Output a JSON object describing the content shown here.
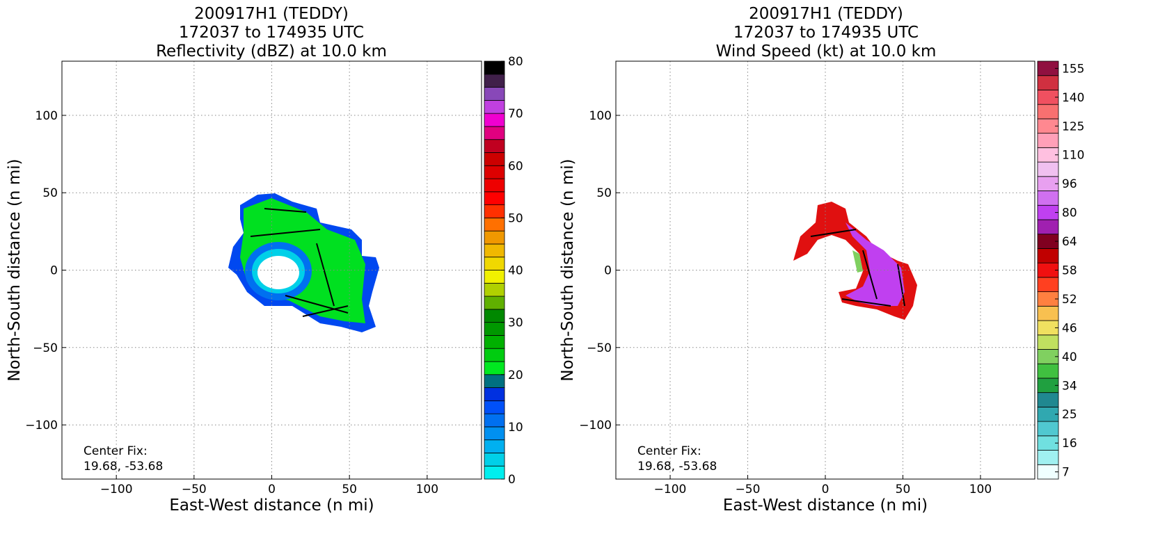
{
  "chart_data": [
    {
      "type": "heatmap",
      "title": [
        "200917H1 (TEDDY)",
        "172037 to 174935 UTC",
        "Reflectivity (dBZ) at 10.0 km"
      ],
      "xlabel": "East-West distance (n mi)",
      "ylabel": "North-South distance (n mi)",
      "xlim": [
        -135,
        135
      ],
      "ylim": [
        -135,
        135
      ],
      "xticks": [
        {
          "value": -100,
          "label": "−100"
        },
        {
          "value": -50,
          "label": "−50"
        },
        0,
        50,
        100
      ],
      "yticks": [
        {
          "value": -100,
          "label": "−100"
        },
        {
          "value": -50,
          "label": "−50"
        },
        0,
        50,
        100
      ],
      "grid": true,
      "annotation": [
        "Center Fix:",
        "19.68, -53.68"
      ],
      "colorbar": {
        "lim": [
          0,
          80
        ],
        "ticks": [
          0,
          10,
          20,
          30,
          40,
          50,
          60,
          70,
          80
        ],
        "colors": [
          "#00eeee",
          "#00d0e8",
          "#00b0f0",
          "#0090f0",
          "#0070f0",
          "#0050f8",
          "#0030e0",
          "#007080",
          "#00e820",
          "#00cc10",
          "#00b000",
          "#009800",
          "#008800",
          "#60b000",
          "#b0d000",
          "#f0f000",
          "#f0d800",
          "#f0b800",
          "#f09800",
          "#ff7000",
          "#ff3000",
          "#ff0000",
          "#ee0000",
          "#dd0000",
          "#cc0000",
          "#c00020",
          "#e00080",
          "#f000d0",
          "#c040e0",
          "#8848b8",
          "#40204a",
          "#000000"
        ]
      }
    },
    {
      "type": "heatmap",
      "title": [
        "200917H1 (TEDDY)",
        "172037 to 174935 UTC",
        "Wind Speed (kt) at 10.0 km"
      ],
      "xlabel": "East-West distance (n mi)",
      "ylabel": "North-South distance (n mi)",
      "xlim": [
        -135,
        135
      ],
      "ylim": [
        -135,
        135
      ],
      "xticks": [
        {
          "value": -100,
          "label": "−100"
        },
        {
          "value": -50,
          "label": "−50"
        },
        0,
        50,
        100
      ],
      "yticks": [
        {
          "value": -100,
          "label": "−100"
        },
        {
          "value": -50,
          "label": "−50"
        },
        0,
        50,
        100
      ],
      "grid": true,
      "annotation": [
        "Center Fix:",
        "19.68, -53.68"
      ],
      "colorbar": {
        "levels": [
          7,
          11,
          16,
          20,
          25,
          30,
          34,
          37,
          40,
          43,
          46,
          49,
          52,
          55,
          58,
          61,
          64,
          72,
          80,
          88,
          96,
          103,
          110,
          118,
          125,
          133,
          140,
          148,
          155
        ],
        "ticks": [
          7,
          16,
          25,
          34,
          40,
          46,
          52,
          58,
          64,
          80,
          96,
          110,
          125,
          140,
          155
        ],
        "colors": [
          "#f0ffff",
          "#a0f0f0",
          "#70e0e0",
          "#50c8d0",
          "#30a8b0",
          "#208890",
          "#20a040",
          "#40c040",
          "#80d060",
          "#c0e060",
          "#f0e060",
          "#f8c050",
          "#ff8040",
          "#ff4020",
          "#f01010",
          "#c00000",
          "#800020",
          "#a020b0",
          "#c040f0",
          "#d070f0",
          "#e8a0f0",
          "#f0c0f0",
          "#ffc0e0",
          "#ffa0b8",
          "#ff8890",
          "#f87070",
          "#f05060",
          "#d03040",
          "#901040"
        ]
      }
    }
  ]
}
